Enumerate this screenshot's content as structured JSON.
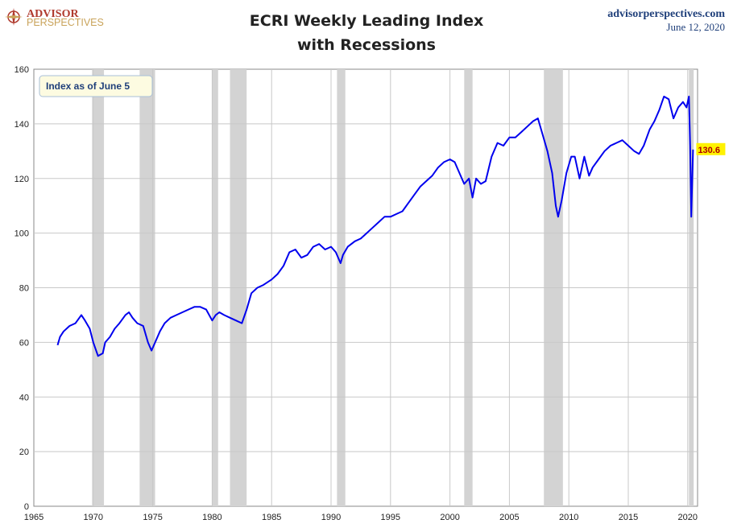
{
  "header": {
    "logo_line1": "ADVISOR",
    "logo_line2": "PERSPECTIVES",
    "title_line1": "ECRI Weekly Leading Index",
    "title_line2": "with Recessions",
    "site": "advisorperspectives.com",
    "date": "June 12, 2020"
  },
  "colors": {
    "line": "#0000ee",
    "recession": "#d3d3d3",
    "grid": "#c8c8c8",
    "annotation_bg": "#fdfbe1",
    "annotation_border": "#a8bfd8",
    "last_label_bg": "#fff200"
  },
  "chart_data": {
    "type": "line",
    "title": "ECRI Weekly Leading Index with Recessions",
    "xlabel": "",
    "ylabel": "",
    "xlim": [
      1965,
      2021.5
    ],
    "ylim": [
      0,
      160
    ],
    "x_ticks": [
      1965,
      1970,
      1975,
      1980,
      1985,
      1990,
      1995,
      2000,
      2005,
      2010,
      2015,
      2020
    ],
    "y_ticks": [
      0,
      20,
      40,
      60,
      80,
      100,
      120,
      140,
      160
    ],
    "grid": true,
    "annotation": "Index as of June 5",
    "last_value_label": "130.6",
    "recessions": [
      [
        1969.9,
        1970.9
      ],
      [
        1973.9,
        1975.2
      ],
      [
        1980.0,
        1980.5
      ],
      [
        1981.5,
        1982.9
      ],
      [
        1990.5,
        1991.2
      ],
      [
        2001.2,
        2001.9
      ],
      [
        2007.9,
        2009.5
      ],
      [
        2020.1,
        2020.5
      ]
    ],
    "series": [
      {
        "x": [
          1967.0,
          1967.2,
          1967.5,
          1968.0,
          1968.5,
          1969.0,
          1969.3,
          1969.7,
          1970.0,
          1970.4,
          1970.8,
          1971.0,
          1971.4,
          1971.8,
          1972.2,
          1972.7,
          1973.0,
          1973.3,
          1973.7,
          1974.2,
          1974.6,
          1974.9,
          1975.2,
          1975.6,
          1976.0,
          1976.5,
          1977.0,
          1977.5,
          1978.0,
          1978.5,
          1979.0,
          1979.5,
          1980.0,
          1980.3,
          1980.6,
          1981.0,
          1981.5,
          1982.0,
          1982.5,
          1982.9,
          1983.3,
          1983.8,
          1984.3,
          1985.0,
          1985.5,
          1986.0,
          1986.5,
          1987.0,
          1987.5,
          1988.0,
          1988.5,
          1989.0,
          1989.5,
          1990.0,
          1990.4,
          1990.8,
          1991.0,
          1991.4,
          1992.0,
          1992.5,
          1993.0,
          1993.5,
          1994.0,
          1994.5,
          1995.0,
          1995.5,
          1996.0,
          1996.5,
          1997.0,
          1997.5,
          1998.0,
          1998.5,
          1999.0,
          1999.5,
          2000.0,
          2000.4,
          2000.8,
          2001.2,
          2001.6,
          2001.9,
          2002.2,
          2002.6,
          2003.0,
          2003.5,
          2004.0,
          2004.5,
          2005.0,
          2005.5,
          2006.0,
          2006.5,
          2007.0,
          2007.4,
          2007.8,
          2008.2,
          2008.6,
          2008.9,
          2009.1,
          2009.4,
          2009.8,
          2010.2,
          2010.5,
          2010.9,
          2011.3,
          2011.7,
          2012.0,
          2012.5,
          2013.0,
          2013.5,
          2014.0,
          2014.5,
          2015.0,
          2015.5,
          2015.9,
          2016.3,
          2016.8,
          2017.2,
          2017.6,
          2018.0,
          2018.4,
          2018.8,
          2019.2,
          2019.6,
          2019.9,
          2020.1,
          2020.2,
          2020.3,
          2020.35,
          2020.45
        ],
        "values": [
          59,
          62,
          64,
          66,
          67,
          70,
          68,
          65,
          60,
          55,
          56,
          60,
          62,
          65,
          67,
          70,
          71,
          69,
          67,
          66,
          60,
          57,
          60,
          64,
          67,
          69,
          70,
          71,
          72,
          73,
          73,
          72,
          68,
          70,
          71,
          70,
          69,
          68,
          67,
          72,
          78,
          80,
          81,
          83,
          85,
          88,
          93,
          94,
          91,
          92,
          95,
          96,
          94,
          95,
          93,
          89,
          92,
          95,
          97,
          98,
          100,
          102,
          104,
          106,
          106,
          107,
          108,
          111,
          114,
          117,
          119,
          121,
          124,
          126,
          127,
          126,
          122,
          118,
          120,
          113,
          120,
          118,
          119,
          128,
          133,
          132,
          135,
          135,
          137,
          139,
          141,
          142,
          136,
          130,
          122,
          110,
          106,
          112,
          122,
          128,
          128,
          120,
          128,
          121,
          124,
          127,
          130,
          132,
          133,
          134,
          132,
          130,
          129,
          132,
          138,
          141,
          145,
          150,
          149,
          142,
          146,
          148,
          146,
          150,
          132,
          106,
          115,
          130.6
        ]
      }
    ]
  }
}
